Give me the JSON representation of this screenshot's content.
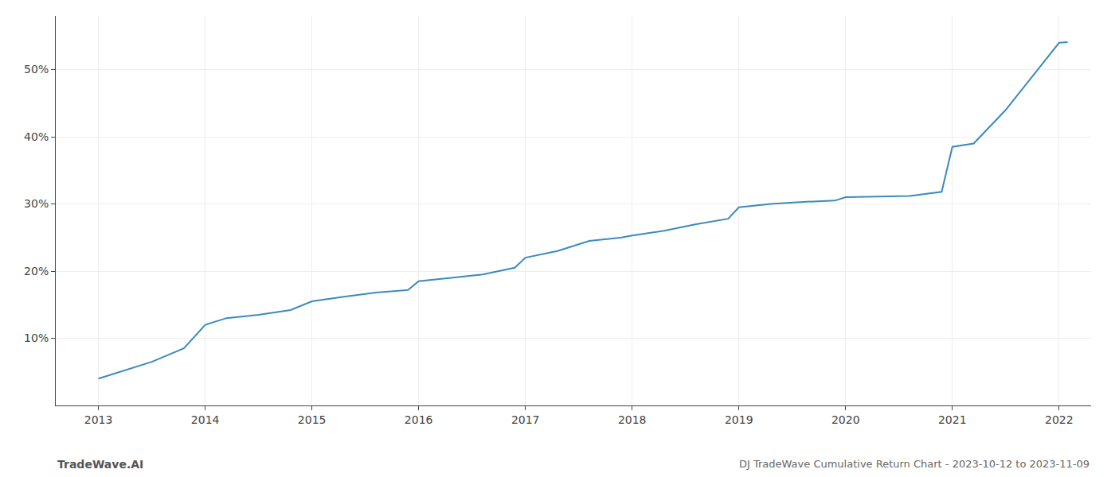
{
  "chart_data": {
    "type": "line",
    "title": "DJ TradeWave Cumulative Return Chart - 2023-10-12 to 2023-11-09",
    "annotations": [
      "TradeWave.AI"
    ],
    "x": [
      2013.0,
      2013.2,
      2013.5,
      2013.8,
      2014.0,
      2014.2,
      2014.5,
      2014.8,
      2015.0,
      2015.3,
      2015.6,
      2015.9,
      2016.0,
      2016.3,
      2016.6,
      2016.9,
      2017.0,
      2017.3,
      2017.6,
      2017.9,
      2018.0,
      2018.3,
      2018.6,
      2018.9,
      2019.0,
      2019.3,
      2019.6,
      2019.9,
      2020.0,
      2020.3,
      2020.6,
      2020.9,
      2021.0,
      2021.2,
      2021.5,
      2021.8,
      2022.0,
      2022.08
    ],
    "values": [
      4.0,
      5.0,
      6.5,
      8.5,
      12.0,
      13.0,
      13.5,
      14.2,
      15.5,
      16.2,
      16.8,
      17.2,
      18.5,
      19.0,
      19.5,
      20.5,
      22.0,
      23.0,
      24.5,
      25.0,
      25.3,
      26.0,
      27.0,
      27.8,
      29.5,
      30.0,
      30.3,
      30.5,
      31.0,
      31.1,
      31.2,
      31.8,
      38.5,
      39.0,
      44.0,
      50.0,
      54.0,
      54.1
    ],
    "color": "#3a8bbf",
    "xlim": [
      2012.6,
      2022.3
    ],
    "xticks": [
      2013,
      2014,
      2015,
      2016,
      2017,
      2018,
      2019,
      2020,
      2021,
      2022
    ],
    "ylim": [
      0,
      58
    ],
    "yticks": [
      {
        "value": 10,
        "label": "10%"
      },
      {
        "value": 20,
        "label": "20%"
      },
      {
        "value": 30,
        "label": "30%"
      },
      {
        "value": 40,
        "label": "40%"
      },
      {
        "value": 50,
        "label": "50%"
      }
    ],
    "grid": true
  }
}
